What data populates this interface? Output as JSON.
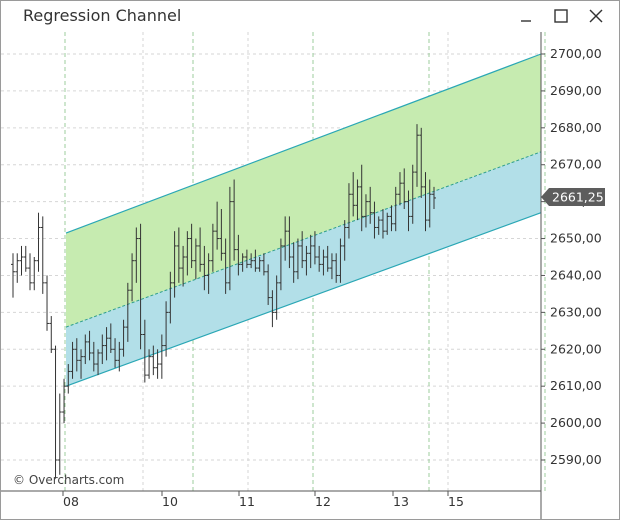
{
  "window": {
    "title": "Regression Channel",
    "minimize_icon": "minimize-icon",
    "maximize_icon": "maximize-icon",
    "close_icon": "close-icon"
  },
  "watermark": "© Overcharts.com",
  "colors": {
    "upper_channel_fill": "#c6ebb0",
    "lower_channel_fill": "#b2dfe8",
    "channel_line": "#2aa7b5",
    "midline": "#2f9e8c",
    "grid": "#d6d6d6",
    "day_separator": "#9ccc9c",
    "bar": "#333333",
    "price_label_bg": "#5d5d5d",
    "price_label_text": "#ffffff"
  },
  "chart_data": {
    "type": "ohlc",
    "title": "Regression Channel",
    "y_axis": {
      "position": "right",
      "ylim": [
        2583,
        2705
      ],
      "ticks": [
        2590,
        2600,
        2610,
        2620,
        2630,
        2640,
        2650,
        2660,
        2670,
        2680,
        2690,
        2700
      ],
      "tick_labels": [
        "2590,00",
        "2600,00",
        "2610,00",
        "2620,00",
        "2630,00",
        "2640,00",
        "2650,00",
        "2660,00",
        "2670,00",
        "2680,00",
        "2690,00",
        "2700,00"
      ]
    },
    "x_axis": {
      "day_labels": [
        "08",
        "10",
        "11",
        "12",
        "13",
        "15"
      ],
      "day_separators_at_bar": [
        8,
        40,
        70,
        99,
        128
      ]
    },
    "last_price": 2661.25,
    "last_price_label": "2661,25",
    "regression_channel": {
      "start_bar": 9,
      "end_bar": 180,
      "upper": [
        2651.5,
        2700.0
      ],
      "middle": [
        2626.0,
        2673.5
      ],
      "lower": [
        2610.0,
        2657.0
      ]
    },
    "grid": true,
    "bars": [
      [
        2643,
        2646,
        2634,
        2641
      ],
      [
        2641,
        2646,
        2638,
        2644
      ],
      [
        2644,
        2648,
        2640,
        2645
      ],
      [
        2645,
        2648,
        2641,
        2642
      ],
      [
        2642,
        2646,
        2636,
        2638
      ],
      [
        2638,
        2645,
        2636,
        2644
      ],
      [
        2644,
        2657,
        2641,
        2653
      ],
      [
        2653,
        2656,
        2635,
        2638
      ],
      [
        2638,
        2640,
        2625,
        2627
      ],
      [
        2627,
        2629,
        2619,
        2620
      ],
      [
        2620,
        2621,
        2585,
        2590
      ],
      [
        2590,
        2608,
        2586,
        2603
      ],
      [
        2603,
        2612,
        2600,
        2610
      ],
      [
        2610,
        2616,
        2608,
        2614
      ],
      [
        2614,
        2622,
        2612,
        2620
      ],
      [
        2620,
        2623,
        2614,
        2617
      ],
      [
        2617,
        2620,
        2612,
        2618
      ],
      [
        2618,
        2624,
        2616,
        2622
      ],
      [
        2622,
        2625,
        2617,
        2619
      ],
      [
        2619,
        2622,
        2614,
        2616
      ],
      [
        2616,
        2620,
        2613,
        2619
      ],
      [
        2619,
        2624,
        2616,
        2621
      ],
      [
        2621,
        2626,
        2617,
        2623
      ],
      [
        2623,
        2627,
        2619,
        2620
      ],
      [
        2620,
        2623,
        2615,
        2617
      ],
      [
        2617,
        2622,
        2614,
        2620
      ],
      [
        2620,
        2628,
        2618,
        2626
      ],
      [
        2626,
        2638,
        2622,
        2636
      ],
      [
        2636,
        2646,
        2633,
        2644
      ],
      [
        2644,
        2653,
        2638,
        2650
      ],
      [
        2650,
        2654,
        2620,
        2624
      ],
      [
        2624,
        2628,
        2611,
        2613
      ],
      [
        2613,
        2620,
        2612,
        2618
      ],
      [
        2618,
        2621,
        2613,
        2615
      ],
      [
        2615,
        2620,
        2612,
        2616
      ],
      [
        2616,
        2624,
        2612,
        2621
      ],
      [
        2621,
        2633,
        2618,
        2630
      ],
      [
        2630,
        2641,
        2627,
        2638
      ],
      [
        2638,
        2652,
        2634,
        2648
      ],
      [
        2648,
        2653,
        2638,
        2642
      ],
      [
        2642,
        2648,
        2637,
        2645
      ],
      [
        2645,
        2652,
        2640,
        2650
      ],
      [
        2650,
        2654,
        2642,
        2644
      ],
      [
        2644,
        2650,
        2639,
        2648
      ],
      [
        2648,
        2653,
        2641,
        2643
      ],
      [
        2643,
        2648,
        2636,
        2640
      ],
      [
        2640,
        2646,
        2635,
        2644
      ],
      [
        2644,
        2654,
        2641,
        2652
      ],
      [
        2652,
        2660,
        2647,
        2650
      ],
      [
        2650,
        2658,
        2644,
        2646
      ],
      [
        2646,
        2650,
        2635,
        2638
      ],
      [
        2638,
        2664,
        2636,
        2660
      ],
      [
        2660,
        2666,
        2644,
        2647
      ],
      [
        2647,
        2651,
        2640,
        2643
      ],
      [
        2643,
        2646,
        2641,
        2645
      ],
      [
        2645,
        2647,
        2642,
        2643
      ],
      [
        2643,
        2646,
        2642,
        2644
      ],
      [
        2644,
        2647,
        2641,
        2642
      ],
      [
        2642,
        2645,
        2641,
        2644
      ],
      [
        2644,
        2646,
        2640,
        2641
      ],
      [
        2641,
        2643,
        2632,
        2634
      ],
      [
        2634,
        2636,
        2626,
        2630
      ],
      [
        2630,
        2640,
        2628,
        2638
      ],
      [
        2638,
        2650,
        2636,
        2648
      ],
      [
        2648,
        2656,
        2644,
        2652
      ],
      [
        2652,
        2656,
        2642,
        2645
      ],
      [
        2645,
        2649,
        2638,
        2641
      ],
      [
        2641,
        2650,
        2639,
        2648
      ],
      [
        2648,
        2652,
        2642,
        2644
      ],
      [
        2644,
        2648,
        2640,
        2646
      ],
      [
        2646,
        2651,
        2642,
        2648
      ],
      [
        2648,
        2652,
        2643,
        2645
      ],
      [
        2645,
        2648,
        2641,
        2643
      ],
      [
        2643,
        2647,
        2640,
        2645
      ],
      [
        2645,
        2648,
        2641,
        2642
      ],
      [
        2642,
        2646,
        2639,
        2644
      ],
      [
        2644,
        2646,
        2638,
        2640
      ],
      [
        2640,
        2650,
        2638,
        2648
      ],
      [
        2648,
        2655,
        2644,
        2653
      ],
      [
        2653,
        2665,
        2650,
        2662
      ],
      [
        2662,
        2668,
        2656,
        2659
      ],
      [
        2659,
        2666,
        2655,
        2664
      ],
      [
        2664,
        2670,
        2652,
        2656
      ],
      [
        2656,
        2662,
        2653,
        2660
      ],
      [
        2660,
        2664,
        2654,
        2657
      ],
      [
        2657,
        2660,
        2650,
        2653
      ],
      [
        2653,
        2656,
        2651,
        2655
      ],
      [
        2655,
        2658,
        2650,
        2652
      ],
      [
        2652,
        2657,
        2651,
        2656
      ],
      [
        2656,
        2659,
        2652,
        2654
      ],
      [
        2654,
        2664,
        2652,
        2662
      ],
      [
        2662,
        2668,
        2659,
        2665
      ],
      [
        2665,
        2669,
        2658,
        2660
      ],
      [
        2660,
        2663,
        2652,
        2656
      ],
      [
        2656,
        2670,
        2654,
        2668
      ],
      [
        2668,
        2681,
        2664,
        2678
      ],
      [
        2678,
        2680,
        2661,
        2664
      ],
      [
        2664,
        2668,
        2652,
        2655
      ],
      [
        2655,
        2666,
        2653,
        2662
      ],
      [
        2662,
        2664,
        2658,
        2661
      ]
    ]
  }
}
